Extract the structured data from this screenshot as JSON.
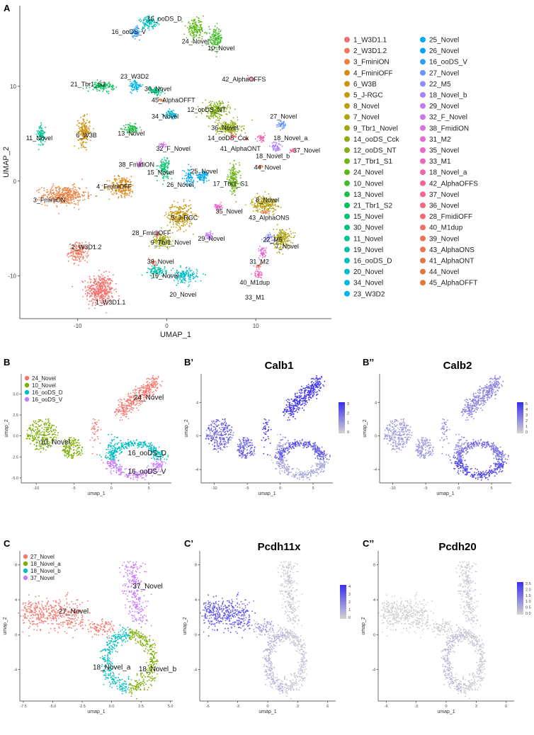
{
  "panels": {
    "A": "A",
    "B": "B",
    "B1": "B’",
    "B2": "B’’",
    "C": "C",
    "C1": "C’",
    "C2": "C’’"
  },
  "chart_data": [
    {
      "id": "A",
      "type": "scatter",
      "title": "",
      "xlabel": "UMAP_1",
      "ylabel": "UMAP_2",
      "xlim": [
        -16.5,
        18.5
      ],
      "ylim": [
        -14.5,
        18.5
      ],
      "xticks": [
        -10,
        0,
        10
      ],
      "yticks": [
        -10,
        0,
        10
      ],
      "clusters": [
        {
          "name": "1_W3D1.1",
          "color": "#F4706C",
          "x": -7.5,
          "y": -11.5,
          "sx": 1.4,
          "sy": 1.5,
          "n": 420
        },
        {
          "name": "2_W3D1.2",
          "color": "#F07A5E",
          "x": -9.9,
          "y": -7.5,
          "sx": 1.0,
          "sy": 0.9,
          "n": 170
        },
        {
          "name": "3_FminiON",
          "color": "#EC8142",
          "x": -11.5,
          "y": -1.5,
          "sx": 2.2,
          "sy": 0.9,
          "n": 380
        },
        {
          "name": "4_FminiOFF",
          "color": "#D98A14",
          "x": -5.0,
          "y": -0.6,
          "sx": 1.3,
          "sy": 1.0,
          "n": 220
        },
        {
          "name": "6_W3B",
          "color": "#CF9211",
          "x": -9.3,
          "y": 5.2,
          "sx": 0.6,
          "sy": 1.3,
          "n": 190
        },
        {
          "name": "5_J-RGC",
          "color": "#C39A11",
          "x": 1.5,
          "y": -3.7,
          "sx": 1.3,
          "sy": 1.2,
          "n": 280
        },
        {
          "name": "8_Novel",
          "color": "#B7A012",
          "x": 11.0,
          "y": -2.4,
          "sx": 1.3,
          "sy": 0.8,
          "n": 230
        },
        {
          "name": "7_Novel",
          "color": "#ABA413",
          "x": 13.0,
          "y": -6.1,
          "sx": 0.9,
          "sy": 1.0,
          "n": 200
        },
        {
          "name": "9_Tbr1_Novel",
          "color": "#9EA813",
          "x": -0.5,
          "y": -6.3,
          "sx": 1.0,
          "sy": 0.6,
          "n": 150
        },
        {
          "name": "14_ooDS_Cck",
          "color": "#90AC13",
          "x": 7.0,
          "y": 5.6,
          "sx": 1.3,
          "sy": 0.7,
          "n": 200
        },
        {
          "name": "12_ooDS_NT",
          "color": "#80B013",
          "x": 5.5,
          "y": 7.5,
          "sx": 1.3,
          "sy": 0.8,
          "n": 210
        },
        {
          "name": "17_Tbr1_S1",
          "color": "#6EB414",
          "x": 7.5,
          "y": 0.2,
          "sx": 0.6,
          "sy": 1.4,
          "n": 170
        },
        {
          "name": "24_Novel",
          "color": "#5AB814",
          "x": 3.2,
          "y": 16.0,
          "sx": 0.9,
          "sy": 0.9,
          "n": 160
        },
        {
          "name": "10_Novel",
          "color": "#41BB2A",
          "x": 5.5,
          "y": 15.0,
          "sx": 0.7,
          "sy": 1.0,
          "n": 150
        },
        {
          "name": "13_Novel",
          "color": "#1FBE46",
          "x": -4.0,
          "y": 5.5,
          "sx": 0.8,
          "sy": 0.4,
          "n": 90
        },
        {
          "name": "21_Tbr1_S2",
          "color": "#00C15B",
          "x": -7.2,
          "y": 10.0,
          "sx": 1.2,
          "sy": 0.4,
          "n": 120
        },
        {
          "name": "15_Novel",
          "color": "#00C26F",
          "x": -0.3,
          "y": 1.4,
          "sx": 0.6,
          "sy": 1.0,
          "n": 110
        },
        {
          "name": "30_Novel",
          "color": "#00C383",
          "x": -1.2,
          "y": 9.5,
          "sx": 0.7,
          "sy": 0.4,
          "n": 80
        },
        {
          "name": "11_Novel",
          "color": "#00C396",
          "x": -14.1,
          "y": 4.8,
          "sx": 0.4,
          "sy": 1.0,
          "n": 90
        },
        {
          "name": "19_Novel",
          "color": "#00C2A9",
          "x": -1.0,
          "y": -9.5,
          "sx": 0.9,
          "sy": 0.5,
          "n": 100
        },
        {
          "name": "16_ooDS_D",
          "color": "#00C0BB",
          "x": -2.0,
          "y": 16.7,
          "sx": 1.0,
          "sy": 0.6,
          "n": 110
        },
        {
          "name": "20_Novel",
          "color": "#00BDCC",
          "x": 2.0,
          "y": -10.0,
          "sx": 1.3,
          "sy": 0.7,
          "n": 150
        },
        {
          "name": "34_Novel",
          "color": "#00B9DB",
          "x": 0.5,
          "y": 7.0,
          "sx": 0.6,
          "sy": 0.4,
          "n": 70
        },
        {
          "name": "23_W3D2",
          "color": "#00B3E8",
          "x": -3.5,
          "y": 10.0,
          "sx": 0.6,
          "sy": 0.6,
          "n": 80
        },
        {
          "name": "25_Novel",
          "color": "#00ADF3",
          "x": 4.0,
          "y": 0.5,
          "sx": 0.7,
          "sy": 0.5,
          "n": 90
        },
        {
          "name": "26_Novel",
          "color": "#00A5FC",
          "x": 2.5,
          "y": 0.4,
          "sx": 0.5,
          "sy": 0.8,
          "n": 70
        },
        {
          "name": "16_ooDS_V",
          "color": "#2E9DFF",
          "x": -3.5,
          "y": 15.7,
          "sx": 0.5,
          "sy": 0.5,
          "n": 60
        },
        {
          "name": "27_Novel",
          "color": "#6A94FF",
          "x": 13.0,
          "y": 6.0,
          "sx": 0.5,
          "sy": 0.4,
          "n": 50
        },
        {
          "name": "22_M5",
          "color": "#8E8BFF",
          "x": 11.5,
          "y": -6.0,
          "sx": 0.5,
          "sy": 0.4,
          "n": 50
        },
        {
          "name": "18_Novel_b",
          "color": "#A982FC",
          "x": 12.3,
          "y": 3.6,
          "sx": 0.5,
          "sy": 0.5,
          "n": 60
        },
        {
          "name": "29_Novel",
          "color": "#BE7AF5",
          "x": 4.7,
          "y": -5.8,
          "sx": 0.4,
          "sy": 0.4,
          "n": 40
        },
        {
          "name": "32_F_Novel",
          "color": "#CF73EC",
          "x": -0.5,
          "y": 3.8,
          "sx": 0.4,
          "sy": 0.3,
          "n": 30
        },
        {
          "name": "38_FmidiON",
          "color": "#DC6DE2",
          "x": -3.0,
          "y": 1.8,
          "sx": 0.3,
          "sy": 0.3,
          "n": 30
        },
        {
          "name": "31_M2",
          "color": "#E669D6",
          "x": 10.8,
          "y": -7.5,
          "sx": 0.4,
          "sy": 0.6,
          "n": 50
        },
        {
          "name": "35_Novel",
          "color": "#ED66C9",
          "x": 5.8,
          "y": -2.7,
          "sx": 0.4,
          "sy": 0.3,
          "n": 40
        },
        {
          "name": "33_M1",
          "color": "#F363BC",
          "x": 10.2,
          "y": -9.8,
          "sx": 0.4,
          "sy": 0.4,
          "n": 40
        },
        {
          "name": "18_Novel_a",
          "color": "#F663AD",
          "x": 10.6,
          "y": 4.5,
          "sx": 0.4,
          "sy": 0.4,
          "n": 40
        },
        {
          "name": "42_AlphaOFFS",
          "color": "#F8639E",
          "x": 9.5,
          "y": 10.8,
          "sx": 0.3,
          "sy": 0.3,
          "n": 15
        },
        {
          "name": "37_Novel",
          "color": "#F9648E",
          "x": 14.2,
          "y": 3.2,
          "sx": 0.3,
          "sy": 0.3,
          "n": 20
        },
        {
          "name": "36_Novel",
          "color": "#F8677F",
          "x": 7.5,
          "y": 4.8,
          "sx": 0.3,
          "sy": 0.3,
          "n": 20
        },
        {
          "name": "28_FmidiOFF",
          "color": "#F66B70",
          "x": -1.0,
          "y": -5.6,
          "sx": 0.3,
          "sy": 0.3,
          "n": 20
        },
        {
          "name": "40_M1dup",
          "color": "#F36E64",
          "x": 10.3,
          "y": -9.0,
          "sx": 0.3,
          "sy": 0.3,
          "n": 15
        },
        {
          "name": "39_Novel",
          "color": "#EF7158",
          "x": -1.5,
          "y": -8.5,
          "sx": 0.3,
          "sy": 0.3,
          "n": 15
        },
        {
          "name": "43_AlphaONS",
          "color": "#EC734F",
          "x": 11.0,
          "y": -3.3,
          "sx": 0.3,
          "sy": 0.2,
          "n": 15
        },
        {
          "name": "41_AlphaONT",
          "color": "#E87446",
          "x": 9.0,
          "y": 4.5,
          "sx": 0.3,
          "sy": 0.2,
          "n": 15
        },
        {
          "name": "44_Novel",
          "color": "#E5763F",
          "x": 10.5,
          "y": 1.5,
          "sx": 0.3,
          "sy": 0.2,
          "n": 15
        },
        {
          "name": "45_AlphaOFFT",
          "color": "#E27838",
          "x": -0.5,
          "y": 8.5,
          "sx": 0.3,
          "sy": 0.2,
          "n": 15
        }
      ],
      "labels": [
        {
          "text": "16_ooDS_D",
          "x": -2.2,
          "y": 16.9
        },
        {
          "text": "16_ooDS_V",
          "x": -6.2,
          "y": 15.5
        },
        {
          "text": "24_Novel",
          "x": 1.7,
          "y": 14.5
        },
        {
          "text": "10_Novel",
          "x": 4.6,
          "y": 13.8
        },
        {
          "text": "23_W3D2",
          "x": -5.2,
          "y": 10.8
        },
        {
          "text": "42_AlphaOFFS",
          "x": 6.2,
          "y": 10.5
        },
        {
          "text": "21_Tbr1_S2",
          "x": -10.8,
          "y": 10.0
        },
        {
          "text": "30_Novel",
          "x": -2.5,
          "y": 9.5
        },
        {
          "text": "45_AlphaOFFT",
          "x": -1.7,
          "y": 8.3
        },
        {
          "text": "12_ooDS_NT",
          "x": 2.3,
          "y": 7.3
        },
        {
          "text": "34_Novel",
          "x": -1.7,
          "y": 6.6
        },
        {
          "text": "27_Novel",
          "x": 11.6,
          "y": 6.6
        },
        {
          "text": "36_Novel",
          "x": 5.0,
          "y": 5.4
        },
        {
          "text": "11_Novel",
          "x": -15.8,
          "y": 4.3
        },
        {
          "text": "6_W3B",
          "x": -10.2,
          "y": 4.6
        },
        {
          "text": "13_Novel",
          "x": -5.5,
          "y": 4.8
        },
        {
          "text": "14_ooDS_Cck",
          "x": 4.6,
          "y": 4.3
        },
        {
          "text": "18_Novel_a",
          "x": 12.0,
          "y": 4.3
        },
        {
          "text": "41_AlphaONT",
          "x": 6.0,
          "y": 3.2
        },
        {
          "text": "37_Novel",
          "x": 14.2,
          "y": 3.0
        },
        {
          "text": "18_Novel_b",
          "x": 10.0,
          "y": 2.4
        },
        {
          "text": "32_F_Novel",
          "x": -1.2,
          "y": 3.2
        },
        {
          "text": "38_FmidiON",
          "x": -5.4,
          "y": 1.5
        },
        {
          "text": "44_Novel",
          "x": 9.8,
          "y": 1.2
        },
        {
          "text": "15_Novel",
          "x": -2.2,
          "y": 0.7
        },
        {
          "text": "25_Novel",
          "x": 2.7,
          "y": 0.8
        },
        {
          "text": "4_FminiOFF",
          "x": -7.9,
          "y": -0.8
        },
        {
          "text": "26_Novel",
          "x": 0.0,
          "y": -0.6
        },
        {
          "text": "17_Tbr1_S1",
          "x": 5.2,
          "y": -0.5
        },
        {
          "text": "3_FminiON",
          "x": -15.0,
          "y": -2.2
        },
        {
          "text": "8_Novel",
          "x": 10.0,
          "y": -2.2
        },
        {
          "text": "35_Novel",
          "x": 5.5,
          "y": -3.4
        },
        {
          "text": "43_AlphaONS",
          "x": 9.2,
          "y": -4.1
        },
        {
          "text": "5_J-RGC",
          "x": 0.5,
          "y": -4.1
        },
        {
          "text": "28_FmidiOFF",
          "x": -3.9,
          "y": -5.7
        },
        {
          "text": "29_Novel",
          "x": 3.5,
          "y": -6.3
        },
        {
          "text": "2_W3D1.2",
          "x": -10.7,
          "y": -7.2
        },
        {
          "text": "9_Tbr1_Novel",
          "x": -1.8,
          "y": -6.7
        },
        {
          "text": "22_M5",
          "x": 10.8,
          "y": -6.4
        },
        {
          "text": "7_Novel",
          "x": 12.2,
          "y": -7.1
        },
        {
          "text": "31_M2",
          "x": 9.3,
          "y": -8.7
        },
        {
          "text": "39_Novel",
          "x": -2.2,
          "y": -8.7
        },
        {
          "text": "19_Novel",
          "x": -1.7,
          "y": -10.2
        },
        {
          "text": "20_Novel",
          "x": 0.3,
          "y": -12.2
        },
        {
          "text": "40_M1dup",
          "x": 8.2,
          "y": -10.9
        },
        {
          "text": "33_M1",
          "x": 8.8,
          "y": -12.5
        },
        {
          "text": "1_W3D1.1",
          "x": -8.0,
          "y": -13.0
        }
      ],
      "legend_col1": [
        "1_W3D1.1",
        "2_W3D1.2",
        "3_FminiON",
        "4_FminiOFF",
        "6_W3B",
        "5_J-RGC",
        "8_Novel",
        "7_Novel",
        "9_Tbr1_Novel",
        "14_ooDS_Cck",
        "12_ooDS_NT",
        "17_Tbr1_S1",
        "24_Novel",
        "10_Novel",
        "13_Novel",
        "21_Tbr1_S2",
        "15_Novel",
        "30_Novel",
        "11_Novel",
        "19_Novel",
        "16_ooDS_D",
        "20_Novel",
        "34_Novel",
        "23_W3D2"
      ],
      "legend_col2": [
        "25_Novel",
        "26_Novel",
        "16_ooDS_V",
        "27_Novel",
        "22_M5",
        "18_Novel_b",
        "29_Novel",
        "32_F_Novel",
        "38_FmidiON",
        "31_M2",
        "35_Novel",
        "33_M1",
        "18_Novel_a",
        "42_AlphaOFFS",
        "37_Novel",
        "36_Novel",
        "28_FmidiOFF",
        "40_M1dup",
        "39_Novel",
        "43_AlphaONS",
        "41_AlphaONT",
        "44_Novel",
        "45_AlphaOFFT"
      ]
    },
    {
      "id": "B",
      "type": "scatter",
      "title": "",
      "xlabel": "umap_1",
      "ylabel": "umap_2",
      "xlim": [
        -12,
        8
      ],
      "ylim": [
        -5.6,
        7.4
      ],
      "xticks": [
        -10,
        -5,
        0,
        5
      ],
      "yticks": [
        -5.0,
        -2.5,
        0.0,
        2.5,
        5.0
      ],
      "ytick_labels": [
        "-5.0",
        "-2.5",
        "0.0",
        "2.5",
        "5.0"
      ],
      "legend": [
        {
          "name": "24_Novel",
          "color": "#F8766D"
        },
        {
          "name": "10_Novel",
          "color": "#7CAE00"
        },
        {
          "name": "16_ooDS_D",
          "color": "#00BFC4"
        },
        {
          "name": "16_ooDS_V",
          "color": "#C77CFF"
        }
      ],
      "labels": [
        {
          "text": "24_Novel",
          "x": 3.0,
          "y": 4.3
        },
        {
          "text": "10_Novel",
          "x": -9.5,
          "y": -1.0
        },
        {
          "text": "16_ooDS_D",
          "x": 2.2,
          "y": -2.3
        },
        {
          "text": "16_ooDS_V",
          "x": 2.2,
          "y": -4.5
        }
      ]
    },
    {
      "id": "B1",
      "type": "scatter",
      "title": "Calb1",
      "xlabel": "umap_1",
      "ylabel": "umap_2",
      "xticks": [
        -10,
        -5,
        0,
        5
      ],
      "yticks": [
        -4,
        0,
        4
      ],
      "colorbar_ticks": [
        "3",
        "2",
        "1",
        "0"
      ]
    },
    {
      "id": "B2",
      "type": "scatter",
      "title": "Calb2",
      "xlabel": "umap_1",
      "ylabel": "umap_2",
      "xticks": [
        -10,
        -5,
        0,
        5
      ],
      "yticks": [
        -4,
        0,
        4
      ],
      "colorbar_ticks": [
        "5",
        "4",
        "3",
        "2",
        "1",
        "0"
      ]
    },
    {
      "id": "C",
      "type": "scatter",
      "title": "",
      "xlabel": "umap_1",
      "ylabel": "umap_2",
      "xlim": [
        -7.8,
        5.2
      ],
      "ylim": [
        -7.6,
        9.6
      ],
      "xticks": [
        -7.5,
        -5.0,
        -2.5,
        0.0,
        2.5,
        5.0
      ],
      "xtick_labels": [
        "-7.5",
        "-5.0",
        "-2.5",
        "0.0",
        "2.5",
        "5.0"
      ],
      "yticks": [
        -4,
        0,
        4,
        8
      ],
      "legend": [
        {
          "name": "27_Novel",
          "color": "#F8766D"
        },
        {
          "name": "18_Novel_a",
          "color": "#7CAE00"
        },
        {
          "name": "18_Novel_b",
          "color": "#00BFC4"
        },
        {
          "name": "37_Novel",
          "color": "#C77CFF"
        }
      ],
      "labels": [
        {
          "text": "27_Novel",
          "x": -4.5,
          "y": 2.4
        },
        {
          "text": "37_Novel",
          "x": 1.8,
          "y": 5.3
        },
        {
          "text": "18_Novel_a",
          "x": -1.6,
          "y": -4.0
        },
        {
          "text": "18_Novel_b",
          "x": 2.3,
          "y": -4.2
        }
      ]
    },
    {
      "id": "C1",
      "type": "scatter",
      "title": "Pcdh11x",
      "xlabel": "umap_1",
      "ylabel": "umap_2",
      "xticks": [
        -6,
        -3,
        0,
        3,
        6
      ],
      "yticks": [
        -4,
        0,
        4,
        8
      ],
      "colorbar_ticks": [
        "4",
        "3",
        "2",
        "1",
        "0"
      ]
    },
    {
      "id": "C2",
      "type": "scatter",
      "title": "Pcdh20",
      "xlabel": "umap_1",
      "ylabel": "umap_2",
      "xticks": [
        -6,
        -3,
        0,
        3,
        6
      ],
      "yticks": [
        -4,
        0,
        4,
        8
      ],
      "colorbar_ticks": [
        "2.5",
        "2.0",
        "1.5",
        "1.0",
        "0.5",
        "0.0"
      ]
    }
  ]
}
